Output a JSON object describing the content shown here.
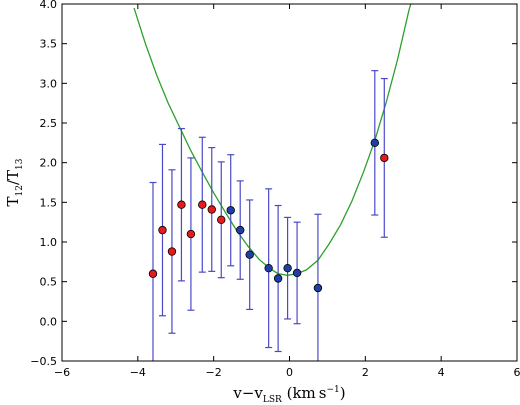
{
  "chart_data": {
    "type": "scatter",
    "xlabel": {
      "base": "v−v",
      "sub": "LSR",
      "unit_open": " (km s",
      "unit_sup": "−1",
      "unit_close": ")"
    },
    "ylabel": {
      "base": "T",
      "sub1": "12",
      "slash": "/T",
      "sub2": "13"
    },
    "xlim": [
      -6,
      6
    ],
    "ylim": [
      -0.5,
      4.0
    ],
    "xticks": [
      -6,
      -4,
      -2,
      0,
      2,
      4,
      6
    ],
    "yticks": [
      -0.5,
      0.0,
      0.5,
      1.0,
      1.5,
      2.0,
      2.5,
      3.0,
      3.5,
      4.0
    ],
    "xtick_labels": [
      "−6",
      "−4",
      "−2",
      "0",
      "2",
      "4",
      "6"
    ],
    "ytick_labels": [
      "−0.5",
      "0.0",
      "0.5",
      "1.0",
      "1.5",
      "2.0",
      "2.5",
      "3.0",
      "3.5",
      "4.0"
    ],
    "grid": false,
    "colors": {
      "red": "#e41a1c",
      "blue": "#1f3fa8",
      "errorbar": "#4a4ac8",
      "fit": "#2ca02c",
      "marker_edge": "#000000"
    },
    "series": [
      {
        "color": "red",
        "points": [
          {
            "x": -3.6,
            "y": 0.6,
            "err": 1.15
          },
          {
            "x": -3.35,
            "y": 1.15,
            "err": 1.08
          },
          {
            "x": -3.1,
            "y": 0.88,
            "err": 1.03
          },
          {
            "x": -2.85,
            "y": 1.47,
            "err": 0.96
          },
          {
            "x": -2.6,
            "y": 1.1,
            "err": 0.96
          },
          {
            "x": -2.3,
            "y": 1.47,
            "err": 0.85
          },
          {
            "x": -2.05,
            "y": 1.41,
            "err": 0.78
          },
          {
            "x": -1.8,
            "y": 1.28,
            "err": 0.73
          },
          {
            "x": 2.5,
            "y": 2.06,
            "err": 1.0
          }
        ]
      },
      {
        "color": "blue",
        "points": [
          {
            "x": -1.55,
            "y": 1.4,
            "err": 0.7
          },
          {
            "x": -1.3,
            "y": 1.15,
            "err": 0.62
          },
          {
            "x": -1.05,
            "y": 0.84,
            "err": 0.69
          },
          {
            "x": -0.55,
            "y": 0.67,
            "err": 1.0
          },
          {
            "x": -0.3,
            "y": 0.54,
            "err": 0.92
          },
          {
            "x": -0.05,
            "y": 0.67,
            "err": 0.64
          },
          {
            "x": 0.2,
            "y": 0.61,
            "err": 0.64
          },
          {
            "x": 0.75,
            "y": 0.42,
            "err": 0.93
          },
          {
            "x": 2.25,
            "y": 2.25,
            "err": 0.91
          }
        ]
      }
    ],
    "fit_curve": {
      "color": "fit",
      "points": [
        [
          -4.1,
          3.95
        ],
        [
          -3.8,
          3.5
        ],
        [
          -3.5,
          3.1
        ],
        [
          -3.2,
          2.75
        ],
        [
          -2.9,
          2.45
        ],
        [
          -2.6,
          2.15
        ],
        [
          -2.3,
          1.88
        ],
        [
          -2.0,
          1.62
        ],
        [
          -1.7,
          1.38
        ],
        [
          -1.4,
          1.15
        ],
        [
          -1.1,
          0.95
        ],
        [
          -0.8,
          0.78
        ],
        [
          -0.5,
          0.66
        ],
        [
          -0.3,
          0.6
        ],
        [
          -0.05,
          0.58
        ],
        [
          0.2,
          0.6
        ],
        [
          0.45,
          0.65
        ],
        [
          0.75,
          0.77
        ],
        [
          1.05,
          0.98
        ],
        [
          1.35,
          1.22
        ],
        [
          1.65,
          1.52
        ],
        [
          1.95,
          1.88
        ],
        [
          2.25,
          2.28
        ],
        [
          2.55,
          2.76
        ],
        [
          2.85,
          3.3
        ],
        [
          3.15,
          3.92
        ],
        [
          3.2,
          4.0
        ]
      ]
    }
  }
}
